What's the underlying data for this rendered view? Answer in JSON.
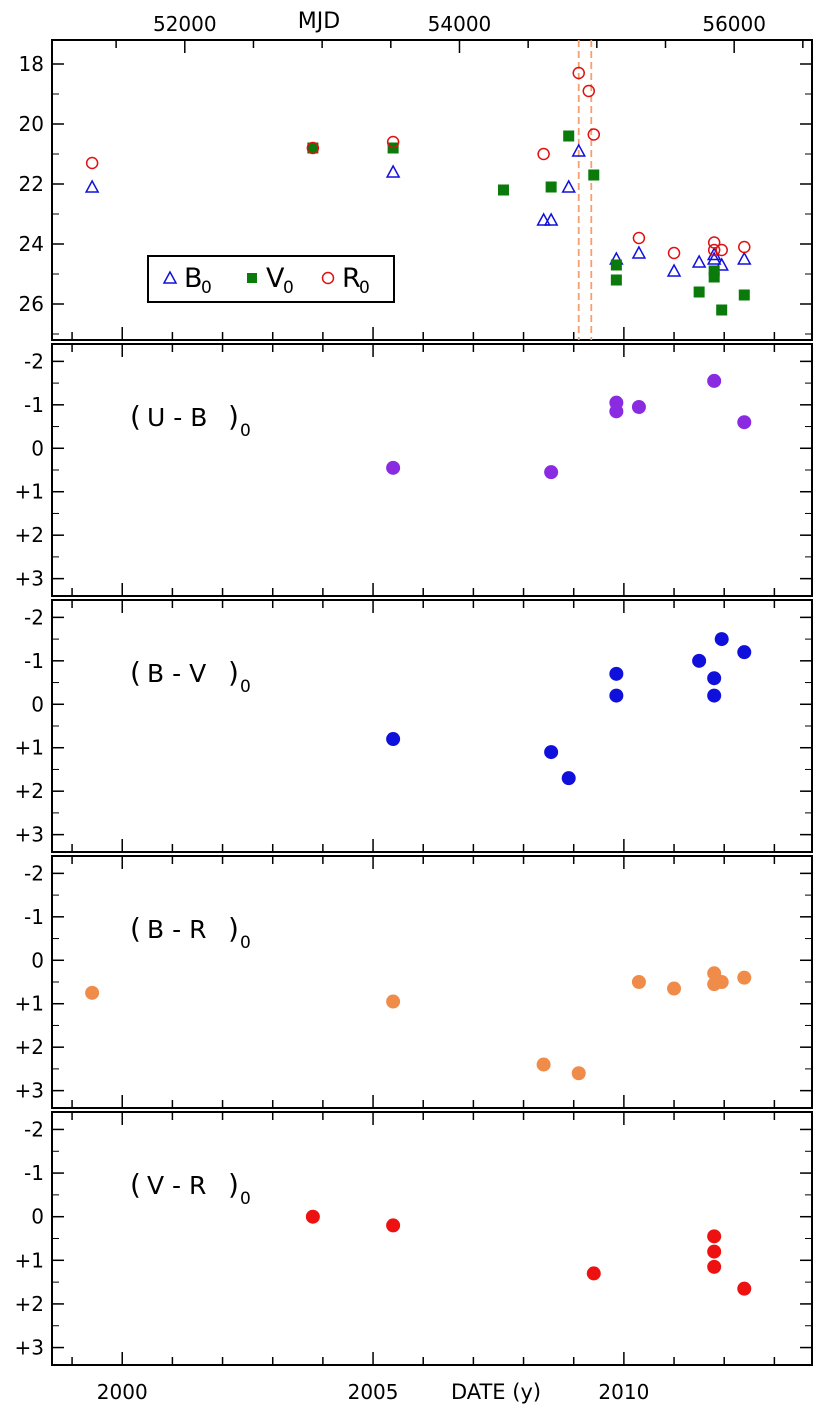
{
  "chart_data": {
    "type": "scatter",
    "x_axis": {
      "label": "DATE (y)",
      "ticks": [
        "2000",
        "2005",
        "2010"
      ],
      "xlim": [
        1998.6,
        2013.75
      ]
    },
    "top_axis": {
      "label": "MJD",
      "ticks": [
        "52000",
        "54000",
        "56000"
      ]
    },
    "panels": [
      {
        "id": "magnitudes",
        "ylim": [
          17.2,
          27.2
        ],
        "y_inverted": true,
        "y_ticks": [
          "18",
          "20",
          "22",
          "24",
          "26"
        ],
        "reference_lines": [
          2009.1,
          2009.35
        ],
        "legend": {
          "items": [
            {
              "base": "B",
              "sub": "0",
              "marker": "open-triangle",
              "color": "#1010dd"
            },
            {
              "base": "V",
              "sub": "0",
              "marker": "filled-square",
              "color": "#0a7a0a"
            },
            {
              "base": "R",
              "sub": "0",
              "marker": "open-circle",
              "color": "#e01010"
            }
          ]
        },
        "series": [
          {
            "name": "B0",
            "marker": "open-triangle",
            "color": "#1010dd",
            "points": [
              [
                1999.4,
                22.1
              ],
              [
                2005.4,
                21.6
              ],
              [
                2008.4,
                23.2
              ],
              [
                2008.55,
                23.2
              ],
              [
                2008.9,
                22.1
              ],
              [
                2009.1,
                20.9
              ],
              [
                2009.85,
                24.5
              ],
              [
                2010.3,
                24.3
              ],
              [
                2011.0,
                24.9
              ],
              [
                2011.5,
                24.6
              ],
              [
                2011.8,
                24.5
              ],
              [
                2011.8,
                24.35
              ],
              [
                2011.95,
                24.7
              ],
              [
                2012.4,
                24.5
              ]
            ]
          },
          {
            "name": "V0",
            "marker": "filled-square",
            "color": "#0a7a0a",
            "points": [
              [
                2003.8,
                20.8
              ],
              [
                2005.4,
                20.8
              ],
              [
                2007.6,
                22.2
              ],
              [
                2008.55,
                22.1
              ],
              [
                2008.9,
                20.4
              ],
              [
                2009.4,
                21.7
              ],
              [
                2009.85,
                24.7
              ],
              [
                2009.85,
                25.2
              ],
              [
                2011.5,
                25.6
              ],
              [
                2011.8,
                25.1
              ],
              [
                2011.8,
                24.9
              ],
              [
                2011.95,
                26.2
              ],
              [
                2012.4,
                25.7
              ]
            ]
          },
          {
            "name": "R0",
            "marker": "open-circle",
            "color": "#e01010",
            "points": [
              [
                1999.4,
                21.3
              ],
              [
                2003.8,
                20.8
              ],
              [
                2005.4,
                20.6
              ],
              [
                2008.4,
                21.0
              ],
              [
                2009.1,
                18.3
              ],
              [
                2009.3,
                18.9
              ],
              [
                2009.4,
                20.35
              ],
              [
                2010.3,
                23.8
              ],
              [
                2011.0,
                24.3
              ],
              [
                2011.8,
                23.95
              ],
              [
                2011.8,
                24.2
              ],
              [
                2011.95,
                24.2
              ],
              [
                2012.4,
                24.1
              ]
            ]
          }
        ]
      },
      {
        "id": "u-b",
        "label": {
          "open": "(",
          "text": "U - B",
          "close": ")",
          "sub": "0"
        },
        "color": "#8a2be2",
        "ylim": [
          -2.4,
          3.4
        ],
        "y_inverted": true,
        "y_ticks": [
          "-2",
          "-1",
          "0",
          "+1",
          "+2",
          "+3"
        ],
        "points": [
          [
            2005.4,
            0.45
          ],
          [
            2008.55,
            0.55
          ],
          [
            2009.85,
            -1.05
          ],
          [
            2009.85,
            -0.85
          ],
          [
            2010.3,
            -0.95
          ],
          [
            2011.8,
            -1.55
          ],
          [
            2012.4,
            -0.6
          ]
        ]
      },
      {
        "id": "b-v",
        "label": {
          "open": "(",
          "text": "B - V",
          "close": ")",
          "sub": "0"
        },
        "color": "#1010dd",
        "ylim": [
          -2.4,
          3.4
        ],
        "y_inverted": true,
        "y_ticks": [
          "-2",
          "-1",
          "0",
          "+1",
          "+2",
          "+3"
        ],
        "points": [
          [
            2005.4,
            0.8
          ],
          [
            2008.55,
            1.1
          ],
          [
            2008.9,
            1.7
          ],
          [
            2009.85,
            -0.7
          ],
          [
            2009.85,
            -0.2
          ],
          [
            2011.5,
            -1.0
          ],
          [
            2011.8,
            -0.6
          ],
          [
            2011.8,
            -0.2
          ],
          [
            2011.95,
            -1.5
          ],
          [
            2012.4,
            -1.2
          ]
        ]
      },
      {
        "id": "b-r",
        "label": {
          "open": "(",
          "text": "B - R",
          "close": ")",
          "sub": "0"
        },
        "color": "#f08c4a",
        "ylim": [
          -2.4,
          3.4
        ],
        "y_inverted": true,
        "y_ticks": [
          "-2",
          "-1",
          "0",
          "+1",
          "+2",
          "+3"
        ],
        "points": [
          [
            1999.4,
            0.75
          ],
          [
            2005.4,
            0.95
          ],
          [
            2008.4,
            2.4
          ],
          [
            2009.1,
            2.6
          ],
          [
            2010.3,
            0.5
          ],
          [
            2011.0,
            0.65
          ],
          [
            2011.8,
            0.3
          ],
          [
            2011.8,
            0.55
          ],
          [
            2011.95,
            0.5
          ],
          [
            2012.4,
            0.4
          ]
        ]
      },
      {
        "id": "v-r",
        "label": {
          "open": "(",
          "text": "V - R",
          "close": ")",
          "sub": "0"
        },
        "color": "#ee1111",
        "ylim": [
          -2.4,
          3.4
        ],
        "y_inverted": true,
        "y_ticks": [
          "-2",
          "-1",
          "0",
          "+1",
          "+2",
          "+3"
        ],
        "points": [
          [
            2003.8,
            0.0
          ],
          [
            2005.4,
            0.2
          ],
          [
            2009.4,
            1.3
          ],
          [
            2011.8,
            0.45
          ],
          [
            2011.8,
            0.8
          ],
          [
            2011.8,
            1.15
          ],
          [
            2012.4,
            1.65
          ]
        ]
      }
    ]
  }
}
